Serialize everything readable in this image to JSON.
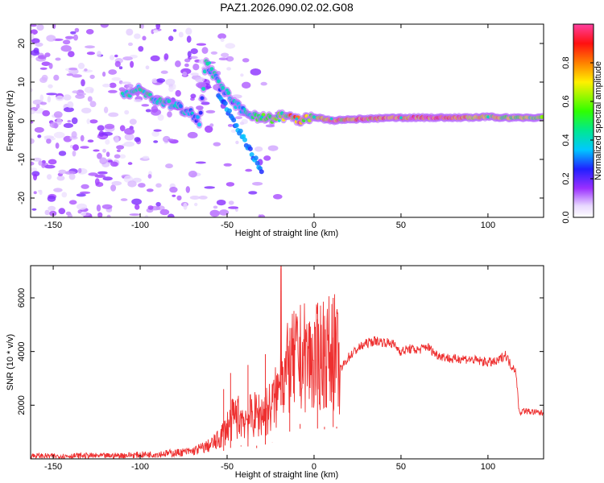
{
  "title": "PAZ1.2026.090.02.02.G08",
  "chart_data": [
    {
      "type": "heatmap",
      "name": "spectrogram",
      "xlabel": "Height of straight line (km)",
      "ylabel": "Frequency (Hz)",
      "xlim": [
        -163,
        132
      ],
      "ylim": [
        -25,
        25
      ],
      "xticks": [
        -150,
        -100,
        -50,
        0,
        50,
        100
      ],
      "yticks": [
        -20,
        -10,
        0,
        10,
        20
      ],
      "grid": false,
      "description_points": [
        {
          "x": -110,
          "y": 7
        },
        {
          "x": -100,
          "y": 8
        },
        {
          "x": -90,
          "y": 5
        },
        {
          "x": -80,
          "y": 4
        },
        {
          "x": -70,
          "y": 2
        },
        {
          "x": -60,
          "y": 15
        },
        {
          "x": -50,
          "y": 8
        },
        {
          "x": -40,
          "y": 3
        },
        {
          "x": -30,
          "y": 1
        },
        {
          "x": -20,
          "y": 0
        },
        {
          "x": -10,
          "y": 0.5
        },
        {
          "x": 0,
          "y": 1
        },
        {
          "x": 10,
          "y": 0.5
        },
        {
          "x": 50,
          "y": 0.8
        },
        {
          "x": 100,
          "y": 1
        }
      ],
      "ridge_x": [
        -110,
        -100,
        -90,
        -80,
        -70,
        -66,
        -62,
        -58,
        -54,
        -50,
        -45,
        -40,
        -35,
        -30,
        -25,
        -20,
        -15,
        -10,
        -5,
        0,
        5,
        10,
        20,
        30,
        50,
        70,
        90,
        100,
        110,
        132
      ],
      "ridge_freq": [
        7,
        8,
        5,
        4,
        2,
        0,
        15,
        12,
        9,
        7,
        4,
        2,
        1.5,
        1,
        0.5,
        1,
        1.5,
        0,
        0.5,
        1,
        0.5,
        0,
        0.3,
        0.5,
        0.8,
        0.8,
        0.8,
        1,
        0.8,
        0.8
      ],
      "ridge_amplitude": [
        0.45,
        0.5,
        0.45,
        0.4,
        0.35,
        0.3,
        0.4,
        0.4,
        0.35,
        0.35,
        0.35,
        0.4,
        0.5,
        0.5,
        0.6,
        0.55,
        0.7,
        0.8,
        0.7,
        0.6,
        0.7,
        0.9,
        0.75,
        0.85,
        0.9,
        0.9,
        0.85,
        0.6,
        0.7,
        0.6
      ],
      "colorbar": {
        "label": "Normalized spectral amplitude",
        "range": [
          0,
          1
        ],
        "ticks": [
          "0.0",
          "0.2",
          "0.4",
          "0.6",
          "0.8"
        ]
      }
    },
    {
      "type": "line",
      "name": "snr",
      "xlabel": "Height of straight line (km)",
      "ylabel": "SNR (10 * v/v)",
      "xlim": [
        -163,
        132
      ],
      "ylim": [
        0,
        7200
      ],
      "xticks": [
        -150,
        -100,
        -50,
        0,
        50,
        100
      ],
      "yticks": [
        2000,
        4000,
        6000
      ],
      "color": "#ee3030",
      "series": [
        {
          "name": "SNR",
          "x": [
            -163,
            -150,
            -140,
            -130,
            -120,
            -110,
            -100,
            -90,
            -80,
            -70,
            -60,
            -55,
            -50,
            -45,
            -40,
            -35,
            -30,
            -25,
            -20,
            -19,
            -18,
            -15,
            -10,
            -5,
            0,
            5,
            10,
            12,
            15,
            20,
            25,
            30,
            35,
            40,
            45,
            50,
            55,
            60,
            65,
            70,
            75,
            80,
            85,
            90,
            95,
            100,
            105,
            110,
            113,
            115,
            116,
            118,
            120,
            125,
            132
          ],
          "y": [
            120,
            100,
            110,
            120,
            110,
            130,
            150,
            180,
            220,
            280,
            500,
            700,
            1200,
            1600,
            1500,
            1600,
            1700,
            1900,
            2500,
            7100,
            3000,
            3300,
            3700,
            3800,
            3600,
            4000,
            3900,
            4000,
            3300,
            3800,
            4100,
            4300,
            4400,
            4350,
            4300,
            4000,
            4100,
            4050,
            4200,
            3900,
            3800,
            3700,
            3750,
            3700,
            3650,
            3600,
            3600,
            3900,
            3500,
            3400,
            3300,
            1700,
            1800,
            1750,
            1700
          ]
        }
      ],
      "noise_spikes": [
        {
          "x": -52,
          "y": 2600
        },
        {
          "x": -48,
          "y": 3200
        },
        {
          "x": -42,
          "y": 500
        },
        {
          "x": -38,
          "y": 3500
        },
        {
          "x": -33,
          "y": 400
        },
        {
          "x": -28,
          "y": 3900
        },
        {
          "x": -24,
          "y": 600
        },
        {
          "x": -14,
          "y": 4400
        },
        {
          "x": -8,
          "y": 1300
        },
        {
          "x": 2,
          "y": 5200
        },
        {
          "x": 6,
          "y": 1100
        },
        {
          "x": 11,
          "y": 6000
        },
        {
          "x": 13,
          "y": 1200
        }
      ]
    }
  ]
}
